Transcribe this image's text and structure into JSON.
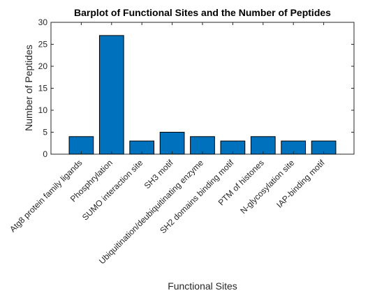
{
  "chart_data": {
    "type": "bar",
    "title": "Barplot of Functional Sites and the Number of Peptides",
    "xlabel": "Functional Sites",
    "ylabel": "Number of Peptides",
    "ylim": [
      0,
      30
    ],
    "yticks": [
      0,
      5,
      10,
      15,
      20,
      25,
      30
    ],
    "grid": false,
    "bar_color": "#0072BD",
    "categories": [
      "Atg8 protein family ligands",
      "Phosphrylation",
      "SUMO interaction site",
      "SH3 motif",
      "Ubiquitination/deubiquitinating enzyme",
      "SH2 domains binding motif",
      "PTM of histones",
      "N-glycosylation site",
      "IAP-binding motif"
    ],
    "values": [
      4,
      27,
      3,
      5,
      4,
      3,
      4,
      3,
      3
    ]
  }
}
